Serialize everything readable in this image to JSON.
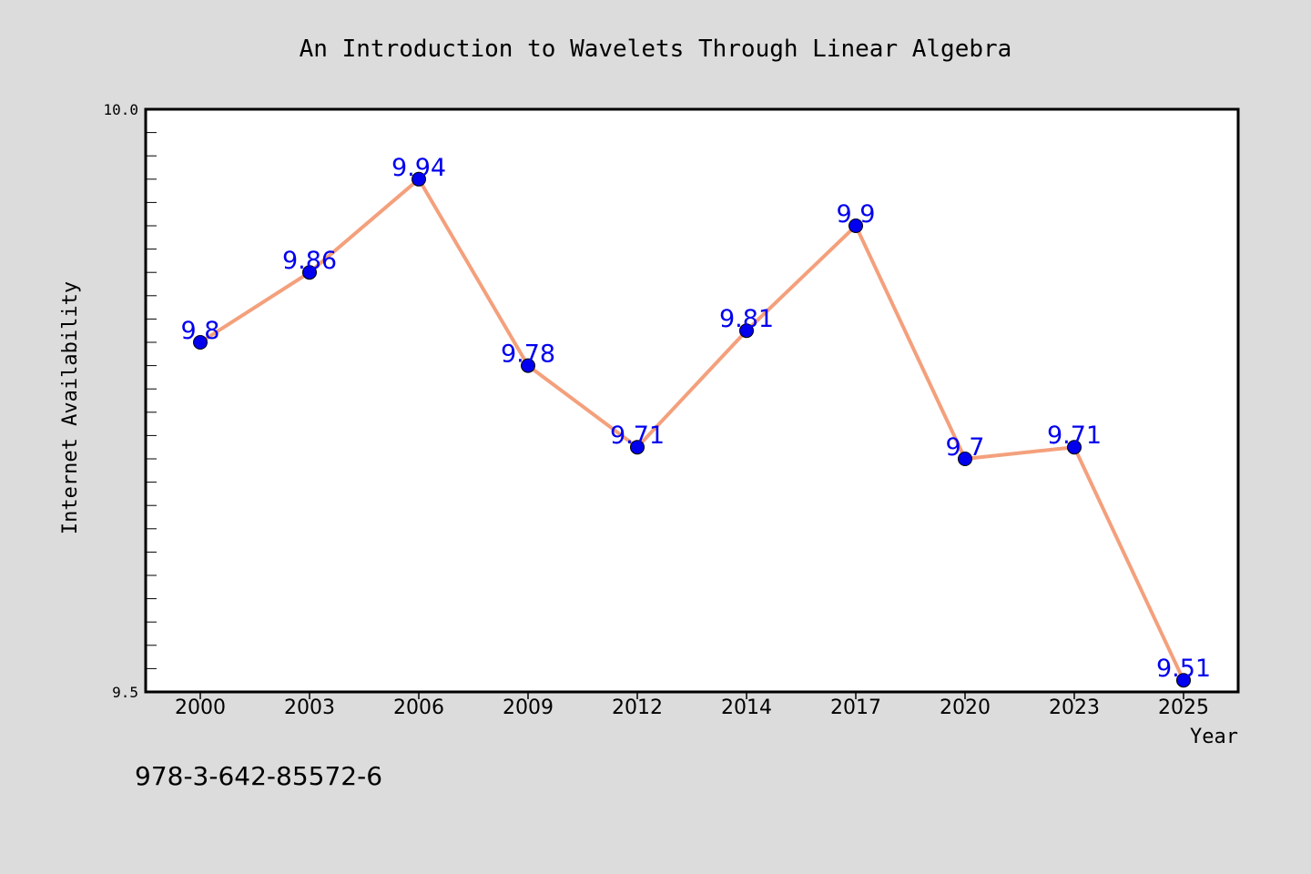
{
  "chart_data": {
    "type": "line",
    "title": "An Introduction to Wavelets Through Linear Algebra",
    "xlabel": "Year",
    "ylabel": "Internet Availability",
    "categories": [
      "2000",
      "2003",
      "2006",
      "2009",
      "2012",
      "2014",
      "2017",
      "2020",
      "2023",
      "2025"
    ],
    "series": [
      {
        "values": [
          9.8,
          9.86,
          9.94,
          9.78,
          9.71,
          9.81,
          9.9,
          9.7,
          9.71,
          9.51
        ],
        "data_labels": [
          "9.8",
          "9.86",
          "9.94",
          "9.78",
          "9.71",
          "9.81",
          "9.9",
          "9.7",
          "9.71",
          "9.51"
        ]
      }
    ],
    "ylim": [
      9.5,
      10.0
    ],
    "yticks": [
      "9.5",
      "10.0"
    ],
    "grid": false,
    "colors": {
      "line": "#f4a07c",
      "marker": "#0000ee",
      "label": "#0000ee",
      "background": "#dcdcdc",
      "plot_area": "#ffffff"
    }
  },
  "footer": {
    "isbn": "978-3-642-85572-6"
  }
}
